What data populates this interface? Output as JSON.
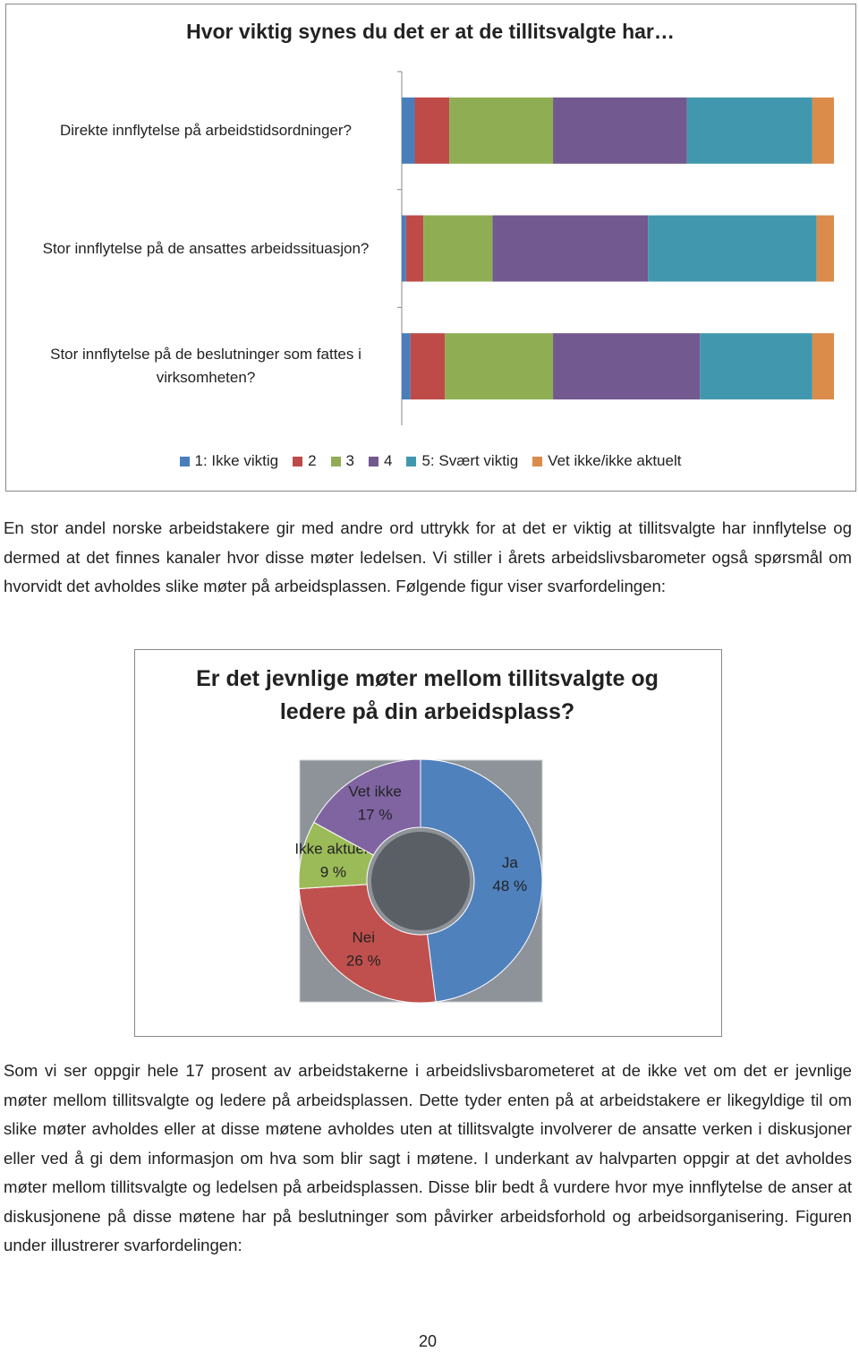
{
  "chart_data": [
    {
      "type": "bar",
      "orientation": "horizontal",
      "stacked": true,
      "title": "Hvor viktig synes du det er at de tillitsvalgte har…",
      "categories": [
        "Direkte innflytelse på arbeidstidsordninger?",
        "Stor innflytelse på de ansattes arbeidssituasjon?",
        "Stor innflytelse på de beslutninger som fattes i virksomheten?"
      ],
      "series": [
        {
          "name": "1: Ikke viktig",
          "color": "#4a7ebb",
          "values": [
            3,
            1,
            2
          ]
        },
        {
          "name": "2",
          "color": "#be4b48",
          "values": [
            8,
            4,
            8
          ]
        },
        {
          "name": "3",
          "color": "#8fae54",
          "values": [
            24,
            16,
            25
          ]
        },
        {
          "name": "4",
          "color": "#72598f",
          "values": [
            31,
            36,
            34
          ]
        },
        {
          "name": "5: Svært viktig",
          "color": "#4198ae",
          "values": [
            29,
            39,
            26
          ]
        },
        {
          "name": "Vet ikke/ikke aktuelt",
          "color": "#db8b4a",
          "values": [
            5,
            4,
            5
          ]
        }
      ],
      "xlim": [
        0,
        100
      ],
      "legend": "bottom"
    },
    {
      "type": "pie",
      "donut": true,
      "title": "Er det jevnlige møter mellom tillitsvalgte og ledere på din arbeidsplass?",
      "categories": [
        "Ja",
        "Nei",
        "Ikke aktuelt",
        "Vet ikke"
      ],
      "values": [
        48,
        26,
        9,
        17
      ],
      "value_labels": [
        "48 %",
        "26 %",
        "9 %",
        "17 %"
      ],
      "colors": [
        "#4f81bd",
        "#c0504d",
        "#9bbb59",
        "#8064a2"
      ]
    }
  ],
  "paragraphs": [
    "En stor andel norske arbeidstakere gir med andre ord uttrykk for at det er viktig at tillitsvalgte har innflytelse og dermed at det finnes kanaler hvor disse møter ledelsen. Vi stiller i årets arbeidslivsbarometer også spørsmål om hvorvidt det avholdes slike møter på arbeidsplassen. Følgende figur viser svarfordelingen:",
    "Som vi ser oppgir hele 17 prosent av arbeidstakerne i arbeidslivsbarometeret at de ikke vet om det er jevnlige møter mellom tillitsvalgte og ledere på arbeidsplassen. Dette tyder enten på at arbeidstakere er likegyldige til om slike møter avholdes eller at disse møtene avholdes uten at tillitsvalgte involverer de ansatte verken i diskusjoner eller ved å gi dem informasjon om hva som blir sagt i møtene. I underkant av halvparten oppgir at det avholdes møter mellom tillitsvalgte og ledelsen på arbeidsplassen. Disse blir bedt å vurdere hvor mye innflytelse de anser at diskusjonene på disse møtene har på beslutninger som påvirker arbeidsforhold og arbeidsorganisering. Figuren under illustrerer svarfordelingen:"
  ],
  "page_number": "20"
}
